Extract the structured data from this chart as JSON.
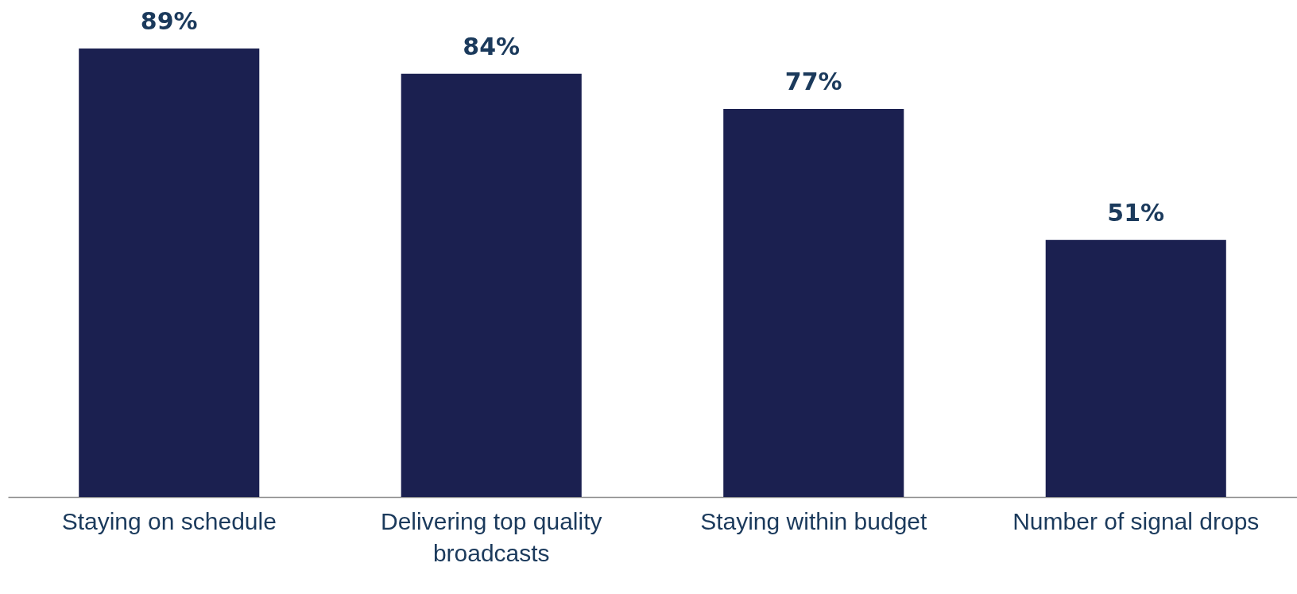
{
  "chart_data": {
    "type": "bar",
    "categories": [
      "Staying on schedule",
      "Delivering top quality broadcasts",
      "Staying within budget",
      "Number of signal drops"
    ],
    "values": [
      89,
      84,
      77,
      51
    ],
    "color": "#1b2050",
    "value_labels": [
      "89%",
      "84%",
      "77%",
      "51%"
    ]
  }
}
